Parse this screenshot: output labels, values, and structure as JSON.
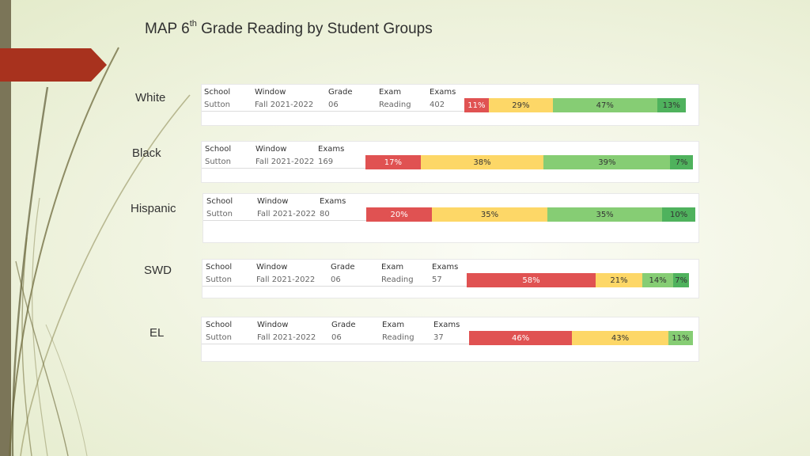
{
  "slide": {
    "title_main": "MAP 6",
    "title_sup": "th",
    "title_rest": " Grade Reading by Student Groups"
  },
  "colors": {
    "red": "#e05252",
    "yellow": "#fdd767",
    "light_green": "#86cd74",
    "dark_green": "#4fb25d",
    "accent_tab": "#a8321e"
  },
  "groups": [
    {
      "label": "White",
      "headers": {
        "school": "School",
        "window": "Window",
        "grade": "Grade",
        "exam": "Exam",
        "exams": "Exams"
      },
      "row": {
        "school": "Sutton",
        "window": "Fall 2021-2022",
        "grade": "06",
        "exam": "Reading",
        "exams": "402"
      },
      "segments": [
        {
          "label": "11%",
          "value": 11
        },
        {
          "label": "29%",
          "value": 29
        },
        {
          "label": "47%",
          "value": 47
        },
        {
          "label": "13%",
          "value": 13
        }
      ]
    },
    {
      "label": "Black",
      "headers": {
        "school": "School",
        "window": "Window",
        "exams": "Exams"
      },
      "row": {
        "school": "Sutton",
        "window": "Fall 2021-2022",
        "exams": "169"
      },
      "segments": [
        {
          "label": "17%",
          "value": 17
        },
        {
          "label": "38%",
          "value": 38
        },
        {
          "label": "39%",
          "value": 39
        },
        {
          "label": "7%",
          "value": 7
        }
      ]
    },
    {
      "label": "Hispanic",
      "headers": {
        "school": "School",
        "window": "Window",
        "exams": "Exams"
      },
      "row": {
        "school": "Sutton",
        "window": "Fall 2021-2022",
        "exams": "80"
      },
      "segments": [
        {
          "label": "20%",
          "value": 20
        },
        {
          "label": "35%",
          "value": 35
        },
        {
          "label": "35%",
          "value": 35
        },
        {
          "label": "10%",
          "value": 10
        }
      ]
    },
    {
      "label": "SWD",
      "headers": {
        "school": "School",
        "window": "Window",
        "grade": "Grade",
        "exam": "Exam",
        "exams": "Exams"
      },
      "row": {
        "school": "Sutton",
        "window": "Fall 2021-2022",
        "grade": "06",
        "exam": "Reading",
        "exams": "57"
      },
      "segments": [
        {
          "label": "58%",
          "value": 58
        },
        {
          "label": "21%",
          "value": 21
        },
        {
          "label": "14%",
          "value": 14
        },
        {
          "label": "7%",
          "value": 7
        }
      ]
    },
    {
      "label": "EL",
      "headers": {
        "school": "School",
        "window": "Window",
        "grade": "Grade",
        "exam": "Exam",
        "exams": "Exams"
      },
      "row": {
        "school": "Sutton",
        "window": "Fall 2021-2022",
        "grade": "06",
        "exam": "Reading",
        "exams": "37"
      },
      "segments": [
        {
          "label": "46%",
          "value": 46
        },
        {
          "label": "43%",
          "value": 43
        },
        {
          "label": "11%",
          "value": 11
        }
      ]
    }
  ]
}
